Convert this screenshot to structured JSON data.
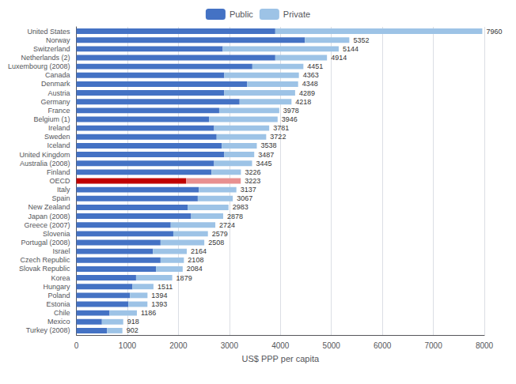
{
  "chart_data": {
    "type": "bar",
    "orientation": "horizontal",
    "stacked": true,
    "grid": true,
    "legend": "top",
    "xlabel": "US$ PPP per capita",
    "categories": [
      "United States",
      "Norway",
      "Switzerland",
      "Netherlands (2)",
      "Luxembourg (2008)",
      "Canada",
      "Denmark",
      "Austria",
      "Germany",
      "France",
      "Belgium (1)",
      "Ireland",
      "Sweden",
      "Iceland",
      "United Kingdom",
      "Australia (2008)",
      "Finland",
      "OECD",
      "Italy",
      "Spain",
      "New Zealand",
      "Japan (2008)",
      "Greece (2007)",
      "Slovenia",
      "Portugal (2008)",
      "Israel",
      "Czech Republic",
      "Slovak Republic",
      "Korea",
      "Hungary",
      "Poland",
      "Estonia",
      "Chile",
      "Mexico",
      "Turkey (2008)"
    ],
    "series": [
      {
        "name": "Public",
        "color": "#4472c4",
        "colors": [
          "#4472c4",
          "#4472c4",
          "#4472c4",
          "#4472c4",
          "#4472c4",
          "#4472c4",
          "#4472c4",
          "#4472c4",
          "#4472c4",
          "#4472c4",
          "#4472c4",
          "#4472c4",
          "#4472c4",
          "#4472c4",
          "#4472c4",
          "#4472c4",
          "#4472c4",
          "#c00000",
          "#4472c4",
          "#4472c4",
          "#4472c4",
          "#4472c4",
          "#4472c4",
          "#4472c4",
          "#4472c4",
          "#4472c4",
          "#4472c4",
          "#4472c4",
          "#4472c4",
          "#4472c4",
          "#4472c4",
          "#4472c4",
          "#4472c4",
          "#4472c4",
          "#4472c4"
        ],
        "values": [
          3900,
          4480,
          2870,
          3900,
          3450,
          2900,
          3350,
          2900,
          3200,
          2800,
          2600,
          2700,
          2750,
          2850,
          2900,
          2700,
          2650,
          2150,
          2400,
          2380,
          2180,
          2250,
          1850,
          1900,
          1650,
          1500,
          1650,
          1560,
          1170,
          1100,
          1050,
          1020,
          650,
          500,
          600
        ]
      },
      {
        "name": "Private",
        "color": "#9dc3e6",
        "colors": [
          "#9dc3e6",
          "#9dc3e6",
          "#9dc3e6",
          "#9dc3e6",
          "#9dc3e6",
          "#9dc3e6",
          "#9dc3e6",
          "#9dc3e6",
          "#9dc3e6",
          "#9dc3e6",
          "#9dc3e6",
          "#9dc3e6",
          "#9dc3e6",
          "#9dc3e6",
          "#9dc3e6",
          "#9dc3e6",
          "#9dc3e6",
          "#e89090",
          "#9dc3e6",
          "#9dc3e6",
          "#9dc3e6",
          "#9dc3e6",
          "#9dc3e6",
          "#9dc3e6",
          "#9dc3e6",
          "#9dc3e6",
          "#9dc3e6",
          "#9dc3e6",
          "#9dc3e6",
          "#9dc3e6",
          "#9dc3e6",
          "#9dc3e6",
          "#9dc3e6",
          "#9dc3e6",
          "#9dc3e6"
        ],
        "values": [
          4060,
          872,
          2274,
          1014,
          1001,
          1463,
          998,
          1389,
          1018,
          1178,
          1346,
          1081,
          972,
          688,
          587,
          745,
          576,
          1073,
          737,
          687,
          803,
          628,
          874,
          679,
          858,
          664,
          458,
          524,
          709,
          411,
          344,
          373,
          536,
          418,
          302
        ]
      }
    ],
    "totals": [
      7960,
      5352,
      5144,
      4914,
      4451,
      4363,
      4348,
      4289,
      4218,
      3978,
      3946,
      3781,
      3722,
      3538,
      3487,
      3445,
      3226,
      3223,
      3137,
      3067,
      2983,
      2878,
      2724,
      2579,
      2508,
      2164,
      2108,
      2084,
      1879,
      1511,
      1394,
      1393,
      1186,
      918,
      902
    ],
    "xlim": [
      0,
      8000
    ],
    "xticks": [
      0,
      1000,
      2000,
      3000,
      4000,
      5000,
      6000,
      7000,
      8000
    ]
  }
}
